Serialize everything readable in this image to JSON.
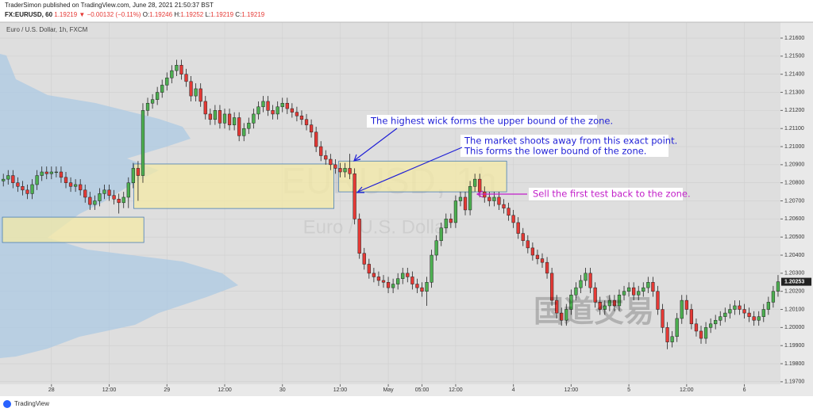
{
  "header": {
    "publisher": "TraderSimon published on TradingView.com, June 28, 2021 21:50:37 BST",
    "symbol": "FX:EURUSD, 60",
    "last": "1.19219",
    "direction": "▼",
    "change": "−0.00132 (−0.11%)",
    "open_label": "O:",
    "open": "1.19246",
    "high_label": "H:",
    "high": "1.19252",
    "low_label": "L:",
    "low": "1.19219",
    "close_label": "C:",
    "close": "1.19219"
  },
  "watermark_cn": "国道交易",
  "footer": {
    "brand": "TradingView"
  },
  "chart_data": {
    "type": "candlestick",
    "title": "Euro / U.S. Dollar, 1h, FXCM",
    "watermark": "EURUSD, 1h",
    "watermark_subtitle": "Euro / U.S. Dollar",
    "up_color": "#4caf50",
    "down_color": "#e53935",
    "zone_color": "#f4eaa6",
    "grid": true,
    "x": [
      -10,
      -9,
      -8,
      -7,
      -6,
      -5,
      -4,
      -3,
      -2,
      -1,
      0,
      1,
      2,
      3,
      4,
      5,
      6,
      7,
      8,
      9,
      10,
      11,
      12,
      13,
      14,
      15,
      16,
      17,
      18,
      19,
      20,
      21,
      22,
      23,
      24,
      25,
      26,
      27,
      28,
      29,
      30,
      31,
      32,
      33,
      34,
      35,
      36,
      37,
      38,
      39,
      40,
      41,
      42,
      43,
      44,
      45,
      46,
      47,
      48,
      49,
      50,
      51,
      52,
      53,
      54,
      55,
      56,
      57,
      58,
      59,
      60,
      61,
      62,
      63,
      64,
      65,
      66,
      67,
      68,
      69,
      70,
      71,
      72,
      73,
      74,
      75,
      76,
      77,
      78,
      79,
      80,
      81,
      82,
      83,
      84,
      85,
      86,
      87,
      88,
      89,
      90,
      91,
      92,
      93,
      94,
      95,
      96,
      97,
      98,
      99,
      100,
      101,
      102,
      103,
      104,
      105,
      106,
      107,
      108,
      109,
      110,
      111,
      112,
      113,
      114,
      115,
      116,
      117,
      118,
      119,
      120,
      121,
      122,
      123,
      124,
      125,
      126,
      127,
      128,
      129,
      130,
      131,
      132,
      133,
      134,
      135,
      136,
      137,
      138,
      139,
      140,
      141,
      142,
      143,
      144,
      145,
      146,
      147,
      148,
      149,
      150,
      151
    ],
    "open": [
      1.2081,
      1.2082,
      1.2084,
      1.208,
      1.2078,
      1.2076,
      1.2074,
      1.2079,
      1.2084,
      1.2086,
      1.2085,
      1.2086,
      1.2086,
      1.2083,
      1.208,
      1.2078,
      1.2079,
      1.2076,
      1.2072,
      1.2068,
      1.207,
      1.2074,
      1.2076,
      1.2073,
      1.2071,
      1.2069,
      1.2072,
      1.208,
      1.2088,
      1.2084,
      1.212,
      1.2124,
      1.2126,
      1.213,
      1.2134,
      1.2138,
      1.2142,
      1.2145,
      1.214,
      1.2136,
      1.2128,
      1.2132,
      1.2125,
      1.2118,
      1.2115,
      1.212,
      1.2113,
      1.2118,
      1.2112,
      1.2116,
      1.2106,
      1.211,
      1.2113,
      1.2118,
      1.2122,
      1.2125,
      1.212,
      1.2118,
      1.2122,
      1.2124,
      1.2121,
      1.2119,
      1.2117,
      1.2115,
      1.2112,
      1.2108,
      1.21,
      1.2095,
      1.2093,
      1.209,
      1.2088,
      1.2086,
      1.2088,
      1.2085,
      1.206,
      1.2041,
      1.2035,
      1.203,
      1.2028,
      1.2026,
      1.2025,
      1.2022,
      1.2024,
      1.2027,
      1.203,
      1.2028,
      1.2024,
      1.2022,
      1.202,
      1.2025,
      1.204,
      1.2048,
      1.2055,
      1.206,
      1.2058,
      1.207,
      1.2072,
      1.2065,
      1.2078,
      1.2082,
      1.2075,
      1.2072,
      1.207,
      1.2072,
      1.2068,
      1.2066,
      1.2062,
      1.2058,
      1.2052,
      1.2048,
      1.2044,
      1.204,
      1.2038,
      1.2036,
      1.203,
      1.2015,
      1.2008,
      1.2004,
      1.201,
      1.2018,
      1.2022,
      1.2026,
      1.203,
      1.2022,
      1.2014,
      1.201,
      1.2012,
      1.2015,
      1.2012,
      1.2018,
      1.202,
      1.2022,
      1.2018,
      1.202,
      1.2022,
      1.2025,
      1.202,
      1.201,
      1.2,
      1.1992,
      1.1995,
      1.2005,
      1.2015,
      1.201,
      1.2002,
      1.1998,
      1.1994,
      1.2,
      1.2002,
      1.2004,
      1.2006,
      1.2008,
      1.201,
      1.2012,
      1.201,
      1.2008,
      1.2006,
      1.2004,
      1.2006,
      1.201,
      1.2014,
      1.202
    ],
    "high": [
      1.2085,
      1.2087,
      1.2087,
      1.2083,
      1.2081,
      1.2079,
      1.2082,
      1.2087,
      1.2089,
      1.2089,
      1.2089,
      1.2089,
      1.2089,
      1.2086,
      1.2083,
      1.2082,
      1.2082,
      1.2079,
      1.2075,
      1.2073,
      1.2077,
      1.2079,
      1.2079,
      1.2076,
      1.2074,
      1.2075,
      1.2083,
      1.2091,
      1.2092,
      1.2124,
      1.2127,
      1.2129,
      1.2133,
      1.2137,
      1.2141,
      1.2145,
      1.2148,
      1.2148,
      1.2143,
      1.2139,
      1.2135,
      1.2135,
      1.2128,
      1.2121,
      1.2123,
      1.2123,
      1.2121,
      1.2121,
      1.2119,
      1.2119,
      1.2113,
      1.2116,
      1.2121,
      1.2125,
      1.2128,
      1.2128,
      1.2123,
      1.2125,
      1.2127,
      1.2127,
      1.2124,
      1.2122,
      1.212,
      1.2118,
      1.2115,
      1.2111,
      1.2103,
      1.2098,
      1.2096,
      1.2093,
      1.2091,
      1.2091,
      1.2096,
      1.2088,
      1.2063,
      1.2044,
      1.2038,
      1.2033,
      1.2031,
      1.2029,
      1.2028,
      1.2027,
      1.203,
      1.2033,
      1.2033,
      1.2031,
      1.2027,
      1.2025,
      1.2028,
      1.2043,
      1.2051,
      1.2058,
      1.2063,
      1.2063,
      1.2073,
      1.2075,
      1.2075,
      1.2081,
      1.2085,
      1.2085,
      1.2078,
      1.2075,
      1.2075,
      1.2075,
      1.2071,
      1.2069,
      1.2065,
      1.2061,
      1.2055,
      1.2051,
      1.2047,
      1.2043,
      1.2041,
      1.2039,
      1.2033,
      1.2018,
      1.2011,
      1.2013,
      1.2021,
      1.2025,
      1.2029,
      1.2033,
      1.2033,
      1.2025,
      1.2017,
      1.2015,
      1.2018,
      1.2018,
      1.2021,
      1.2023,
      1.2025,
      1.2025,
      1.2023,
      1.2025,
      1.2028,
      1.2028,
      1.2023,
      1.2013,
      1.2003,
      1.1998,
      1.2008,
      1.2018,
      1.2018,
      1.2013,
      1.2005,
      1.2001,
      1.2003,
      1.2005,
      1.2007,
      1.2009,
      1.2011,
      1.2013,
      1.2015,
      1.2015,
      1.2013,
      1.2011,
      1.2009,
      1.2009,
      1.2013,
      1.2017,
      1.2023,
      1.2029
    ],
    "low": [
      1.2078,
      1.2079,
      1.2077,
      1.2075,
      1.2073,
      1.2071,
      1.2071,
      1.2076,
      1.2081,
      1.2082,
      1.2082,
      1.2083,
      1.208,
      1.2077,
      1.2075,
      1.2075,
      1.2073,
      1.2069,
      1.2065,
      1.2065,
      1.2067,
      1.2071,
      1.207,
      1.2068,
      1.2063,
      1.2066,
      1.2066,
      1.2077,
      1.207,
      1.208,
      1.2117,
      1.2121,
      1.2123,
      1.2127,
      1.2131,
      1.2135,
      1.2139,
      1.2137,
      1.2133,
      1.2125,
      1.2125,
      1.2122,
      1.2115,
      1.2112,
      1.2112,
      1.211,
      1.211,
      1.2109,
      1.2109,
      1.2103,
      1.2103,
      1.2107,
      1.211,
      1.2115,
      1.2119,
      1.2117,
      1.2115,
      1.2115,
      1.2119,
      1.2118,
      1.2116,
      1.2114,
      1.2112,
      1.2109,
      1.2105,
      1.2097,
      1.2092,
      1.209,
      1.2087,
      1.2085,
      1.2083,
      1.2083,
      1.2082,
      1.2057,
      1.2038,
      1.2032,
      1.2027,
      1.2025,
      1.2023,
      1.2022,
      1.2019,
      1.2019,
      1.2021,
      1.2024,
      1.2025,
      1.2021,
      1.2019,
      1.2017,
      1.2012,
      1.2022,
      1.2037,
      1.2045,
      1.2052,
      1.2055,
      1.2055,
      1.2067,
      1.2062,
      1.2062,
      1.2075,
      1.2072,
      1.2069,
      1.2067,
      1.2067,
      1.2065,
      1.2063,
      1.2059,
      1.2055,
      1.2049,
      1.2045,
      1.2041,
      1.2037,
      1.2035,
      1.2033,
      1.2027,
      1.2012,
      1.2005,
      1.2001,
      1.2001,
      1.2007,
      1.2015,
      1.2019,
      1.2023,
      1.2019,
      1.2011,
      1.2007,
      1.2007,
      1.2009,
      1.2009,
      1.2009,
      1.2015,
      1.2017,
      1.2015,
      1.2015,
      1.2017,
      1.2019,
      1.2017,
      1.2007,
      1.1997,
      1.1988,
      1.1989,
      1.1992,
      1.2002,
      1.2007,
      1.1999,
      1.1995,
      1.1991,
      1.1991,
      1.1997,
      1.1999,
      1.2001,
      1.2003,
      1.2005,
      1.2007,
      1.2007,
      1.2005,
      1.2003,
      1.2001,
      1.2001,
      1.2003,
      1.2007,
      1.2011,
      1.2017
    ],
    "close": [
      1.2082,
      1.2084,
      1.208,
      1.2078,
      1.2076,
      1.2074,
      1.2079,
      1.2084,
      1.2086,
      1.2085,
      1.2086,
      1.2086,
      1.2083,
      1.208,
      1.2078,
      1.2079,
      1.2076,
      1.2072,
      1.2068,
      1.207,
      1.2074,
      1.2076,
      1.2073,
      1.2071,
      1.2069,
      1.2072,
      1.208,
      1.2088,
      1.2084,
      1.212,
      1.2124,
      1.2126,
      1.213,
      1.2134,
      1.2138,
      1.2142,
      1.2145,
      1.214,
      1.2136,
      1.2128,
      1.2132,
      1.2125,
      1.2118,
      1.2115,
      1.212,
      1.2113,
      1.2118,
      1.2112,
      1.2116,
      1.2106,
      1.211,
      1.2113,
      1.2118,
      1.2122,
      1.2125,
      1.212,
      1.2118,
      1.2122,
      1.2124,
      1.2121,
      1.2119,
      1.2117,
      1.2115,
      1.2112,
      1.2108,
      1.21,
      1.2095,
      1.2093,
      1.209,
      1.2088,
      1.2086,
      1.2088,
      1.2085,
      1.206,
      1.2041,
      1.2035,
      1.203,
      1.2028,
      1.2026,
      1.2025,
      1.2022,
      1.2024,
      1.2027,
      1.203,
      1.2028,
      1.2024,
      1.2022,
      1.202,
      1.2025,
      1.204,
      1.2048,
      1.2055,
      1.206,
      1.2058,
      1.207,
      1.2072,
      1.2065,
      1.2078,
      1.2082,
      1.2075,
      1.2072,
      1.207,
      1.2072,
      1.2068,
      1.2066,
      1.2062,
      1.2058,
      1.2052,
      1.2048,
      1.2044,
      1.204,
      1.2038,
      1.2036,
      1.203,
      1.2015,
      1.2008,
      1.2004,
      1.201,
      1.2018,
      1.2022,
      1.2026,
      1.203,
      1.2022,
      1.2014,
      1.201,
      1.2012,
      1.2015,
      1.2012,
      1.2018,
      1.202,
      1.2022,
      1.2018,
      1.202,
      1.2022,
      1.2025,
      1.202,
      1.201,
      1.2,
      1.1992,
      1.1995,
      1.2005,
      1.2015,
      1.201,
      1.2002,
      1.1998,
      1.1994,
      1.2,
      1.2002,
      1.2004,
      1.2006,
      1.2008,
      1.201,
      1.2012,
      1.201,
      1.2008,
      1.2006,
      1.2004,
      1.2006,
      1.201,
      1.2014,
      1.202,
      1.20253
    ],
    "xlim": [
      -10.2,
      151.5
    ],
    "xticks": [
      {
        "value": 0,
        "label": "28"
      },
      {
        "value": 12,
        "label": "12:00"
      },
      {
        "value": 24,
        "label": "29"
      },
      {
        "value": 36,
        "label": "12:00"
      },
      {
        "value": 48,
        "label": "30"
      },
      {
        "value": 60,
        "label": "12:00"
      },
      {
        "value": 70,
        "label": "May"
      },
      {
        "value": 77,
        "label": "05:00"
      },
      {
        "value": 84,
        "label": "12:00"
      },
      {
        "value": 96,
        "label": "4"
      },
      {
        "value": 108,
        "label": "12:00"
      },
      {
        "value": 120,
        "label": "5"
      },
      {
        "value": 132,
        "label": "12:00"
      },
      {
        "value": 144,
        "label": "6"
      }
    ],
    "ylim": [
      1.19695,
      1.21679
    ],
    "yticks": [
      {
        "value": 1.197,
        "label": "1.19700"
      },
      {
        "value": 1.198,
        "label": "1.19800"
      },
      {
        "value": 1.199,
        "label": "1.19900"
      },
      {
        "value": 1.2,
        "label": "1.20000"
      },
      {
        "value": 1.201,
        "label": "1.20100"
      },
      {
        "value": 1.202,
        "label": "1.20200"
      },
      {
        "value": 1.203,
        "label": "1.20300"
      },
      {
        "value": 1.204,
        "label": "1.20400"
      },
      {
        "value": 1.205,
        "label": "1.20500"
      },
      {
        "value": 1.206,
        "label": "1.20600"
      },
      {
        "value": 1.207,
        "label": "1.20700"
      },
      {
        "value": 1.208,
        "label": "1.20800"
      },
      {
        "value": 1.209,
        "label": "1.20900"
      },
      {
        "value": 1.21,
        "label": "1.21000"
      },
      {
        "value": 1.211,
        "label": "1.21100"
      },
      {
        "value": 1.212,
        "label": "1.21200"
      },
      {
        "value": 1.213,
        "label": "1.21300"
      },
      {
        "value": 1.214,
        "label": "1.21400"
      },
      {
        "value": 1.215,
        "label": "1.21500"
      },
      {
        "value": 1.216,
        "label": "1.21600"
      }
    ],
    "zones": [
      {
        "x": [
          -10.2,
          19.2
        ],
        "y": [
          1.2047,
          1.2061
        ]
      },
      {
        "x": [
          17.1,
          58.7
        ],
        "y": [
          1.20658,
          1.20904
        ]
      },
      {
        "x": [
          59.7,
          94.6
        ],
        "y": [
          1.2075,
          1.2092
        ]
      }
    ],
    "annotations": [
      {
        "lines": [
          "The highest wick forms the upper bound of the zone."
        ],
        "color": "#1f1fd6"
      },
      {
        "lines": [
          "The market shoots away from this exact point.",
          "This forms the lower bound of the zone."
        ],
        "color": "#1f1fd6"
      },
      {
        "lines": [
          "Sell the first test back to the zone."
        ],
        "color": "#c21fc9"
      }
    ]
  }
}
